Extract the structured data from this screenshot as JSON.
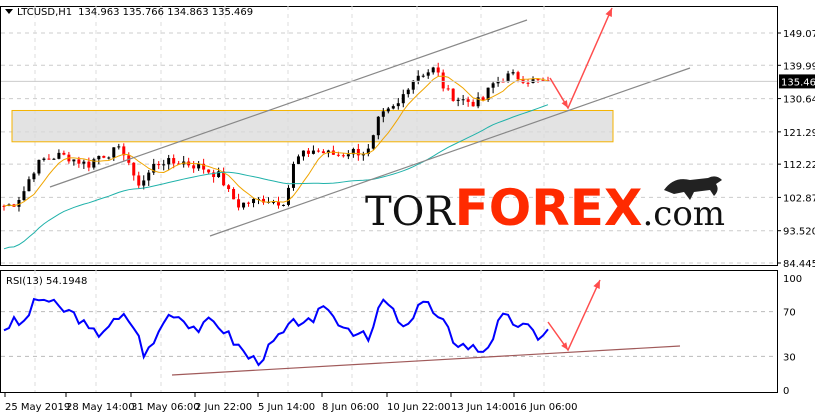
{
  "header": {
    "symbol": "LTCUSD,H1",
    "ohlc": "134.963 135.766 134.863 135.469"
  },
  "rsi_label": "RSI(13) 54.1948",
  "logo": {
    "part1": "TOR",
    "part2": "FOREX",
    "part3": ".com"
  },
  "colors": {
    "bull": "#000000",
    "bear": "#ff0000",
    "ma_fast": "#f0a500",
    "ma_slow": "#20b2aa",
    "rsi": "#0000ff",
    "zone": "#d9d9d9",
    "zone_border": "#f5b300",
    "arrow": "#ff4d4d",
    "channel": "#888888",
    "rsi_trend": "#a05a5a",
    "brand": "#ff2a00"
  },
  "chart_data": [
    {
      "type": "candlestick",
      "title": "LTCUSD,H1",
      "ylim": [
        84.445,
        151.5
      ],
      "yticks": [
        "149.070",
        "139.995",
        "130.645",
        "121.295",
        "112.220",
        "102.870",
        "93.520",
        "84.445"
      ],
      "current_price": "135.469",
      "xticks": [
        "25 May 2019",
        "28 May 14:00",
        "31 May 06:00",
        "2 Jun 22:00",
        "5 Jun 14:00",
        "8 Jun 06:00",
        "10 Jun 22:00",
        "13 Jun 14:00",
        "16 Jun 06:00"
      ],
      "close": [
        100.5,
        101,
        104,
        110,
        113.4,
        114,
        114.8,
        114,
        113,
        112,
        114.5,
        115,
        116.2,
        115.5,
        106.4,
        108,
        112,
        113,
        112.5,
        113,
        112,
        111.5,
        110,
        109,
        104,
        100.7,
        101.5,
        102,
        102.5,
        101.5,
        102,
        113.4,
        115,
        116.2,
        115.5,
        115,
        114.8,
        116,
        115.5,
        116,
        125.2,
        127,
        128.8,
        134,
        137.3,
        138,
        139.2,
        133,
        131,
        130.2,
        129.5,
        130,
        134.5,
        136,
        137.3,
        136.5,
        135.8,
        135.3,
        135.469
      ],
      "annotations": {
        "support_zone": [
          118.5,
          127.3
        ],
        "projection_target": 149.5
      }
    },
    {
      "type": "line",
      "title": "RSI(13) 54.1948",
      "ylim": [
        0,
        100
      ],
      "yticks": [
        "100",
        "70",
        "30",
        "0"
      ],
      "values": [
        55,
        61,
        58,
        75,
        83,
        78,
        72,
        70,
        64,
        53,
        50,
        58,
        61,
        66,
        55,
        31,
        42,
        62,
        70,
        64,
        58,
        54,
        62,
        58,
        48,
        39,
        30,
        26,
        34,
        45,
        52,
        60,
        63,
        56,
        79,
        66,
        60,
        54,
        50,
        43,
        75,
        79,
        60,
        52,
        78,
        80,
        65,
        58,
        44,
        40,
        38,
        35,
        45,
        65,
        62,
        58,
        54,
        48,
        54.19
      ]
    }
  ]
}
